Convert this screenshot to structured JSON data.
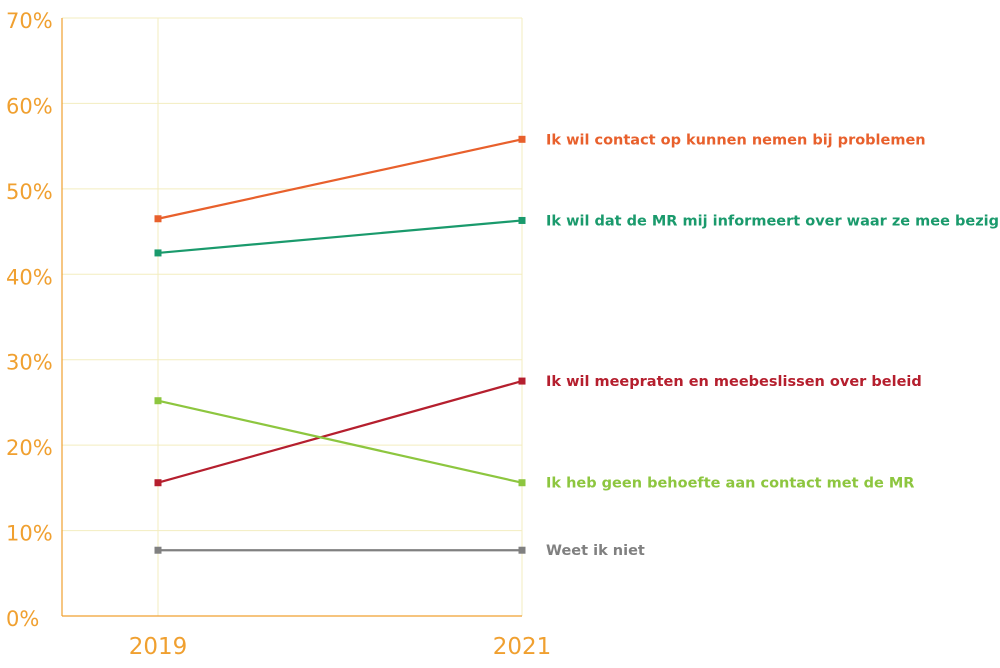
{
  "chart_data": {
    "type": "line",
    "title": "",
    "xlabel": "",
    "ylabel": "",
    "x": [
      "2019",
      "2021"
    ],
    "ylim": [
      0,
      70
    ],
    "yticks": [
      "0%",
      "10%",
      "20%",
      "30%",
      "40%",
      "50%",
      "60%",
      "70%"
    ],
    "ytick_values": [
      0,
      10,
      20,
      30,
      40,
      50,
      60,
      70
    ],
    "grid": true,
    "legend": "direct labels at right end of lines",
    "axis_color": "#f0a030",
    "grid_color": "#f3edbf",
    "series": [
      {
        "name": "Ik wil contact op kunnen nemen bij problemen",
        "values": [
          46.5,
          55.8
        ],
        "color": "#e8602c"
      },
      {
        "name": "Ik wil dat de MR mij informeert over waar ze mee bezig zijn",
        "values": [
          42.5,
          46.3
        ],
        "color": "#1a9a6c"
      },
      {
        "name": "Ik wil meepraten en meebeslissen over beleid",
        "values": [
          15.6,
          27.5
        ],
        "color": "#b51f2e"
      },
      {
        "name": "Ik heb geen behoefte aan contact met de MR",
        "values": [
          25.2,
          15.6
        ],
        "color": "#8dc63f"
      },
      {
        "name": "Weet ik niet",
        "values": [
          7.7,
          7.7
        ],
        "color": "#808080"
      }
    ]
  }
}
